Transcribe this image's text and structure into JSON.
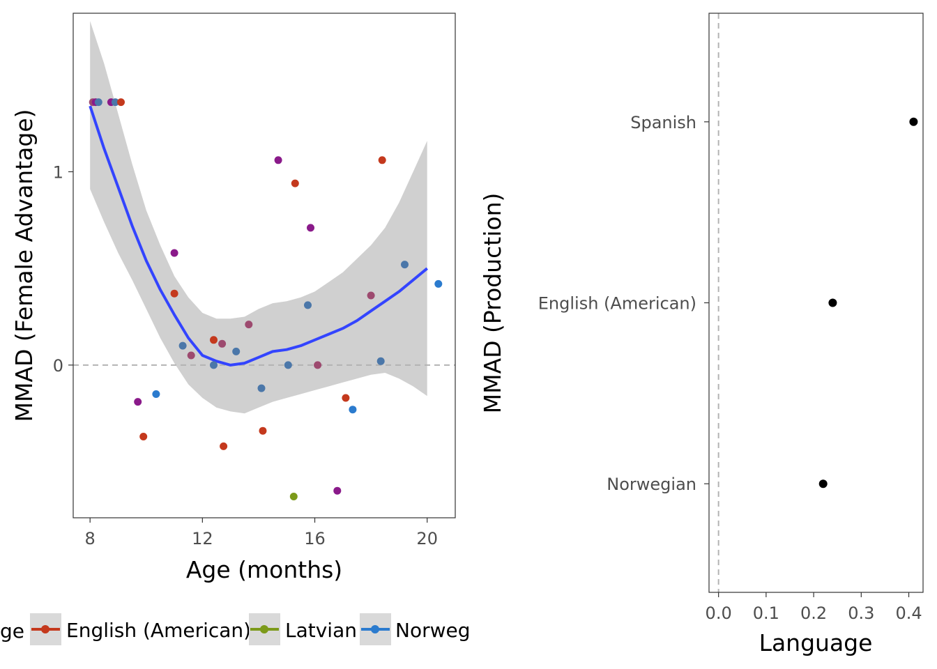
{
  "chart_data": [
    {
      "type": "scatter",
      "xlabel": "Age (months)",
      "ylabel": "MMAD (Female Advantage)",
      "xlim": [
        7.4,
        21.0
      ],
      "ylim": [
        -0.79,
        1.82
      ],
      "x_ticks": [
        8,
        12,
        16,
        20
      ],
      "y_ticks": [
        0,
        1
      ],
      "reference_line": {
        "y": 0,
        "style": "dashed",
        "color": "#b3b3b3"
      },
      "series_colors": {
        "English (American)": "#c4391d",
        "Latvian": "#7c9a1a",
        "Norwegian": "#2b7bce",
        "Spanish": "#8a1a8a",
        "mixed": "#4b77a9",
        "mixed2": "#9d4a6f"
      },
      "points": [
        {
          "x": 8.1,
          "y": 1.36,
          "c": "mixed2"
        },
        {
          "x": 8.2,
          "y": 1.36,
          "c": "Spanish"
        },
        {
          "x": 8.3,
          "y": 1.36,
          "c": "mixed"
        },
        {
          "x": 8.75,
          "y": 1.36,
          "c": "Spanish"
        },
        {
          "x": 8.9,
          "y": 1.36,
          "c": "mixed"
        },
        {
          "x": 9.1,
          "y": 1.36,
          "c": "English (American)"
        },
        {
          "x": 9.7,
          "y": -0.19,
          "c": "Spanish"
        },
        {
          "x": 9.9,
          "y": -0.37,
          "c": "English (American)"
        },
        {
          "x": 10.35,
          "y": -0.15,
          "c": "Norwegian"
        },
        {
          "x": 11.0,
          "y": 0.58,
          "c": "Spanish"
        },
        {
          "x": 11.0,
          "y": 0.37,
          "c": "English (American)"
        },
        {
          "x": 11.3,
          "y": 0.1,
          "c": "mixed"
        },
        {
          "x": 11.6,
          "y": 0.05,
          "c": "mixed2"
        },
        {
          "x": 12.4,
          "y": 0.13,
          "c": "English (American)"
        },
        {
          "x": 12.4,
          "y": 0.0,
          "c": "mixed"
        },
        {
          "x": 12.7,
          "y": 0.11,
          "c": "mixed2"
        },
        {
          "x": 12.75,
          "y": -0.42,
          "c": "English (American)"
        },
        {
          "x": 13.2,
          "y": 0.07,
          "c": "mixed"
        },
        {
          "x": 13.65,
          "y": 0.21,
          "c": "mixed2"
        },
        {
          "x": 14.1,
          "y": -0.12,
          "c": "mixed"
        },
        {
          "x": 14.15,
          "y": -0.34,
          "c": "English (American)"
        },
        {
          "x": 14.7,
          "y": 1.06,
          "c": "Spanish"
        },
        {
          "x": 15.05,
          "y": 0.0,
          "c": "mixed"
        },
        {
          "x": 15.25,
          "y": -0.68,
          "c": "Latvian"
        },
        {
          "x": 15.3,
          "y": 0.94,
          "c": "English (American)"
        },
        {
          "x": 15.75,
          "y": 0.31,
          "c": "mixed"
        },
        {
          "x": 15.85,
          "y": 0.71,
          "c": "Spanish"
        },
        {
          "x": 16.1,
          "y": 0.0,
          "c": "mixed2"
        },
        {
          "x": 16.8,
          "y": -0.65,
          "c": "Spanish"
        },
        {
          "x": 17.1,
          "y": -0.17,
          "c": "English (American)"
        },
        {
          "x": 17.35,
          "y": -0.23,
          "c": "Norwegian"
        },
        {
          "x": 18.0,
          "y": 0.36,
          "c": "mixed2"
        },
        {
          "x": 18.35,
          "y": 0.02,
          "c": "mixed"
        },
        {
          "x": 18.4,
          "y": 1.06,
          "c": "English (American)"
        },
        {
          "x": 19.2,
          "y": 0.52,
          "c": "mixed"
        },
        {
          "x": 20.4,
          "y": 0.42,
          "c": "Norwegian"
        }
      ],
      "smooth": {
        "color": "#3344ff",
        "ribbon_color": "#d0d0d0",
        "x": [
          8.0,
          8.5,
          9.0,
          9.5,
          10.0,
          10.5,
          11.0,
          11.5,
          12.0,
          12.5,
          13.0,
          13.5,
          14.0,
          14.5,
          15.0,
          15.5,
          16.0,
          16.5,
          17.0,
          17.5,
          18.0,
          18.5,
          19.0,
          19.5,
          20.0
        ],
        "y": [
          1.34,
          1.12,
          0.92,
          0.72,
          0.54,
          0.39,
          0.26,
          0.14,
          0.05,
          0.02,
          0.0,
          0.01,
          0.04,
          0.07,
          0.08,
          0.1,
          0.13,
          0.16,
          0.19,
          0.23,
          0.28,
          0.33,
          0.38,
          0.44,
          0.5
        ],
        "lower": [
          0.91,
          0.74,
          0.58,
          0.44,
          0.29,
          0.14,
          0.01,
          -0.1,
          -0.17,
          -0.22,
          -0.24,
          -0.25,
          -0.22,
          -0.19,
          -0.17,
          -0.15,
          -0.13,
          -0.11,
          -0.09,
          -0.07,
          -0.05,
          -0.04,
          -0.07,
          -0.11,
          -0.16
        ],
        "upper": [
          1.78,
          1.56,
          1.3,
          1.04,
          0.8,
          0.62,
          0.46,
          0.35,
          0.27,
          0.24,
          0.24,
          0.25,
          0.29,
          0.32,
          0.33,
          0.35,
          0.38,
          0.43,
          0.48,
          0.55,
          0.62,
          0.71,
          0.84,
          1.0,
          1.16
        ]
      }
    },
    {
      "type": "dot",
      "xlabel": "Language",
      "ylabel": "MMAD (Production)",
      "xlim": [
        -0.02,
        0.43
      ],
      "x_ticks": [
        "0.0",
        "0.1",
        "0.2",
        "0.3",
        "0.4"
      ],
      "reference_line": {
        "x": 0,
        "style": "dashed",
        "color": "#b3b3b3"
      },
      "categories": [
        "Spanish",
        "English (American)",
        "Norwegian"
      ],
      "values": [
        0.41,
        0.24,
        0.22
      ]
    }
  ],
  "legend": {
    "title_visible": "ge",
    "entries": [
      {
        "label": "English (American)",
        "color": "#c4391d"
      },
      {
        "label": "Latvian",
        "color": "#7c9a1a"
      },
      {
        "label": "Norweg",
        "color": "#2b7bce"
      }
    ]
  }
}
